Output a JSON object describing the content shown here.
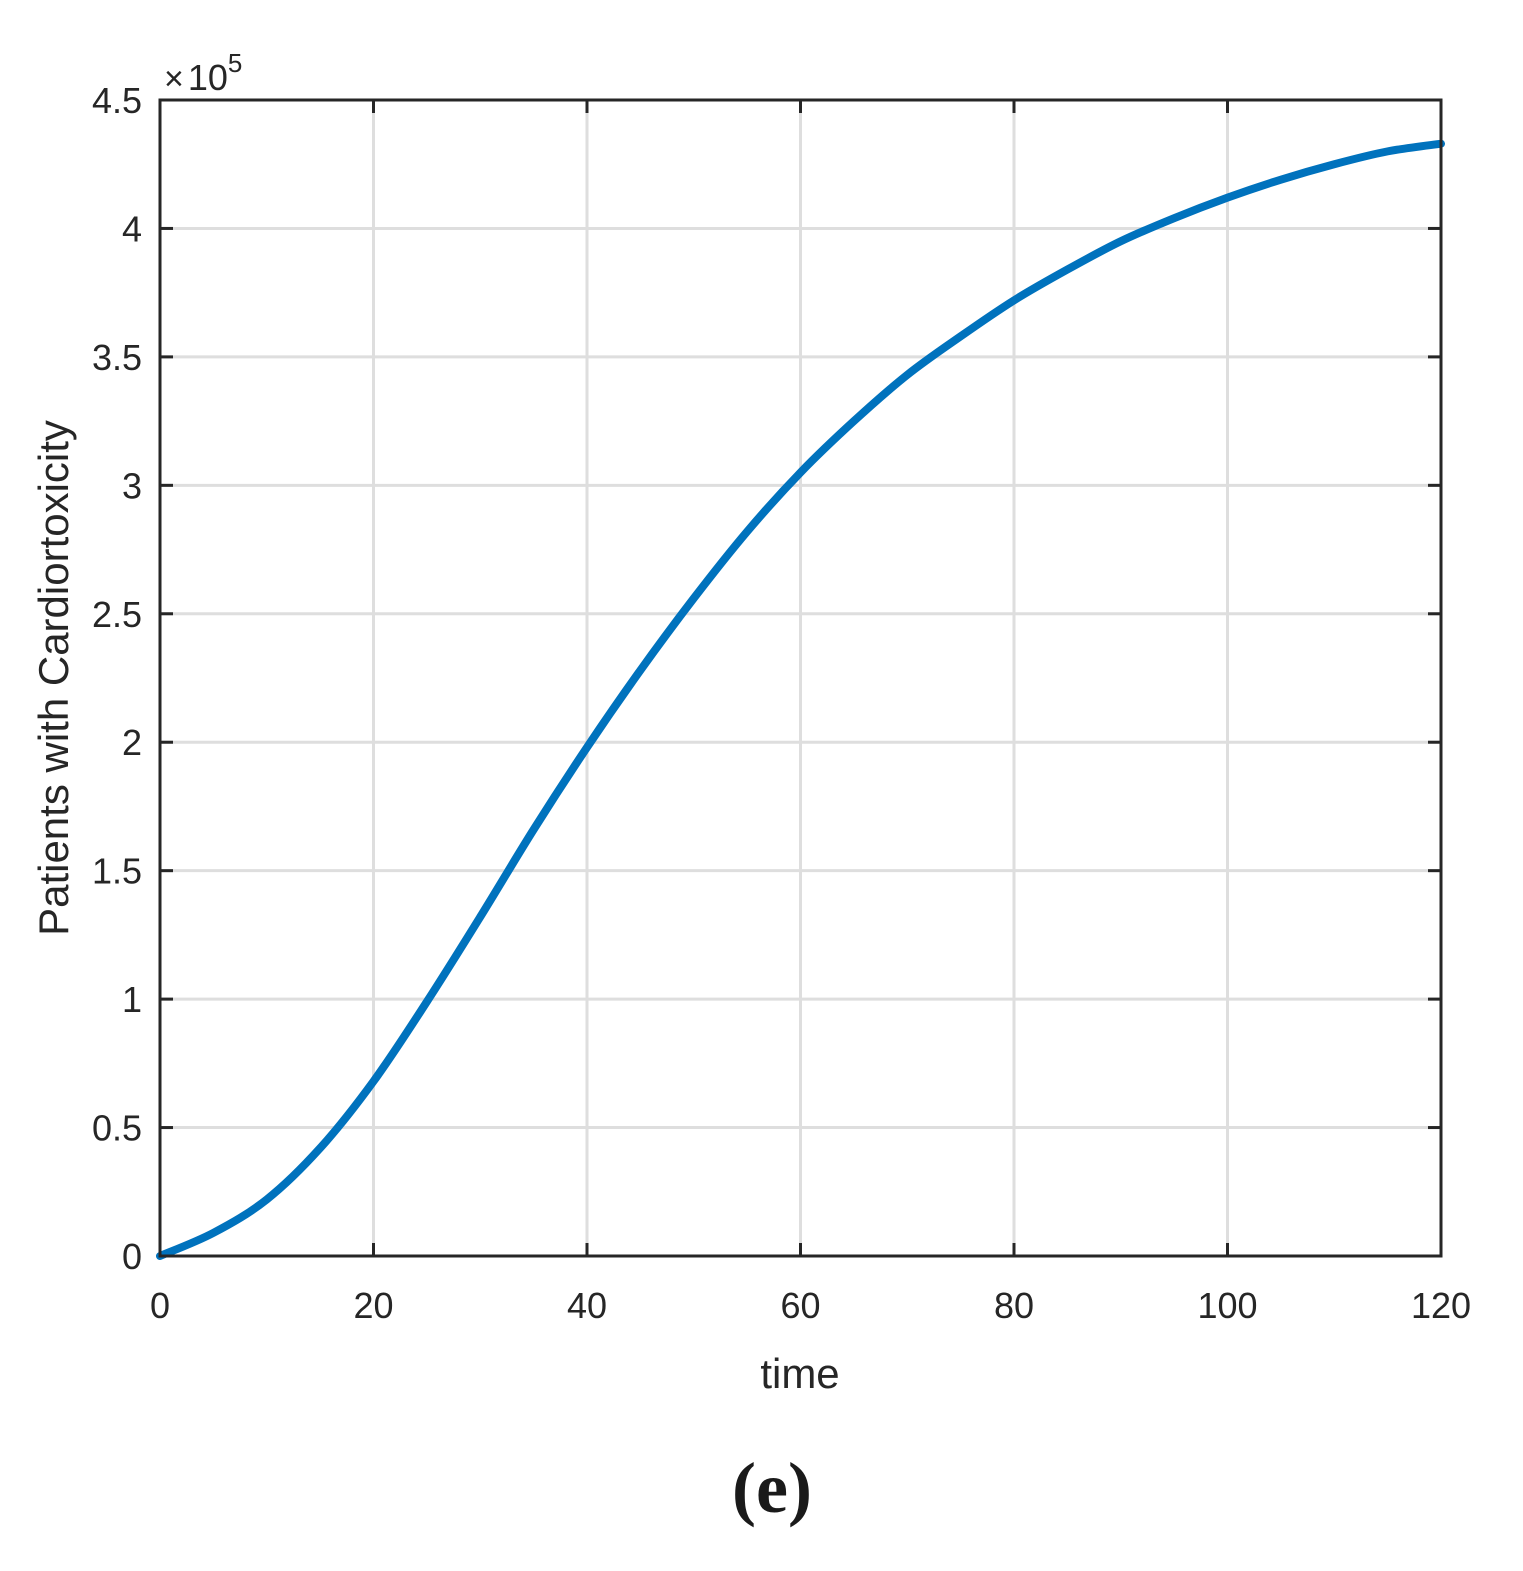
{
  "chart_data": {
    "type": "line",
    "title": "",
    "xlabel": "time",
    "ylabel": "Patients with Cardiortoxicity",
    "y_multiplier": {
      "base": "10",
      "exponent": "5"
    },
    "xlim": [
      0,
      120
    ],
    "ylim": [
      0,
      4.5
    ],
    "x_ticks": [
      "0",
      "20",
      "40",
      "60",
      "80",
      "100",
      "120"
    ],
    "y_ticks": [
      "0",
      "0.5",
      "1",
      "1.5",
      "2",
      "2.5",
      "3",
      "3.5",
      "4",
      "4.5"
    ],
    "grid": true,
    "series": [
      {
        "color": "#0072BD",
        "x": [
          0,
          5,
          10,
          15,
          20,
          25,
          30,
          35,
          40,
          45,
          50,
          55,
          60,
          65,
          70,
          75,
          80,
          85,
          90,
          95,
          100,
          105,
          110,
          115,
          120
        ],
        "y": [
          0,
          0.09,
          0.22,
          0.42,
          0.68,
          0.99,
          1.32,
          1.66,
          1.98,
          2.28,
          2.56,
          2.82,
          3.05,
          3.25,
          3.43,
          3.58,
          3.72,
          3.84,
          3.95,
          4.04,
          4.12,
          4.19,
          4.25,
          4.3,
          4.33
        ]
      }
    ]
  },
  "panel_label": "(e)"
}
